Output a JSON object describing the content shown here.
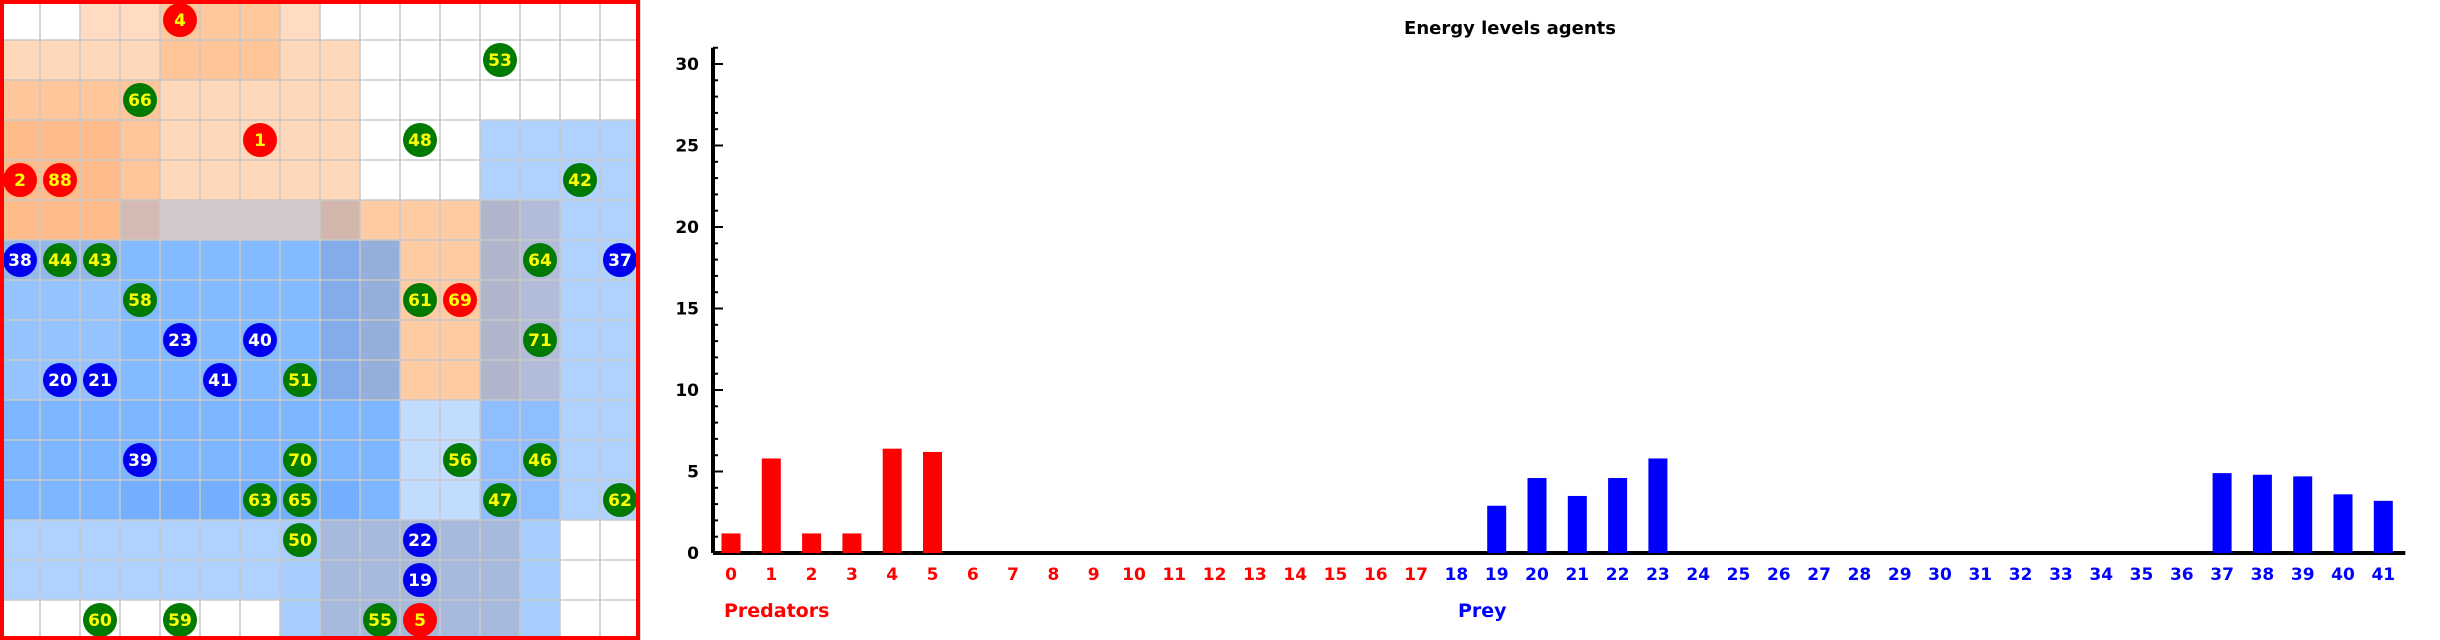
{
  "grid": {
    "rows": 16,
    "cols": 16,
    "cell_fill": "#ffffff",
    "line_color": "#c8c8c8",
    "border_color": "#ff0000",
    "zone_colors": {
      "predator": "#ffa763",
      "prey": "#4f9bff"
    },
    "zones": [
      {
        "kind": "predator",
        "c0": 2,
        "r0": 0,
        "c1": 7,
        "r1": 0,
        "opacity": 0.4
      },
      {
        "kind": "predator",
        "c0": 4,
        "r0": 0,
        "c1": 6,
        "r1": 1,
        "opacity": 0.4
      },
      {
        "kind": "predator",
        "c0": 0,
        "r0": 1,
        "c1": 8,
        "r1": 5,
        "opacity": 0.45
      },
      {
        "kind": "predator",
        "c0": 0,
        "r0": 2,
        "c1": 3,
        "r1": 5,
        "opacity": 0.35
      },
      {
        "kind": "predator",
        "c0": 0,
        "r0": 3,
        "c1": 2,
        "r1": 6,
        "opacity": 0.3
      },
      {
        "kind": "predator",
        "c0": 8,
        "r0": 5,
        "c1": 13,
        "r1": 9,
        "opacity": 0.45
      },
      {
        "kind": "predator",
        "c0": 9,
        "r0": 5,
        "c1": 12,
        "r1": 9,
        "opacity": 0.25
      },
      {
        "kind": "predator",
        "c0": 8,
        "r0": 13,
        "c1": 12,
        "r1": 15,
        "opacity": 0.45
      },
      {
        "kind": "prey",
        "c0": 12,
        "r0": 3,
        "c1": 15,
        "r1": 12,
        "opacity": 0.45
      },
      {
        "kind": "prey",
        "c0": 0,
        "r0": 6,
        "c1": 9,
        "r1": 12,
        "opacity": 0.6
      },
      {
        "kind": "prey",
        "c0": 3,
        "r0": 5,
        "c1": 8,
        "r1": 9,
        "opacity": 0.25
      },
      {
        "kind": "prey",
        "c0": 0,
        "r0": 10,
        "c1": 13,
        "r1": 12,
        "opacity": 0.35
      },
      {
        "kind": "prey",
        "c0": 0,
        "r0": 13,
        "c1": 6,
        "r1": 14,
        "opacity": 0.45
      },
      {
        "kind": "prey",
        "c0": 7,
        "r0": 13,
        "c1": 13,
        "r1": 15,
        "opacity": 0.5
      },
      {
        "kind": "prey",
        "c0": 3,
        "r0": 12,
        "c1": 8,
        "r1": 12,
        "opacity": 0.2
      }
    ],
    "agent_colors": {
      "predator": "#ff0000",
      "prey": "#0000ee",
      "plant": "#007a00",
      "predator_text": "#ffff00",
      "prey_text": "#ffffff",
      "plant_text": "#ffff00"
    },
    "agents": [
      {
        "label": "4",
        "kind": "predator",
        "row": 0,
        "col": 4
      },
      {
        "label": "53",
        "kind": "plant",
        "row": 1,
        "col": 12
      },
      {
        "label": "66",
        "kind": "plant",
        "row": 2,
        "col": 3
      },
      {
        "label": "1",
        "kind": "predator",
        "row": 3,
        "col": 6
      },
      {
        "label": "48",
        "kind": "plant",
        "row": 3,
        "col": 10
      },
      {
        "label": "2",
        "kind": "predator",
        "row": 4,
        "col": 0
      },
      {
        "label": "88",
        "kind": "predator",
        "row": 4,
        "col": 1
      },
      {
        "label": "42",
        "kind": "plant",
        "row": 4,
        "col": 14
      },
      {
        "label": "38",
        "kind": "prey",
        "row": 6,
        "col": 0
      },
      {
        "label": "44",
        "kind": "plant",
        "row": 6,
        "col": 1
      },
      {
        "label": "43",
        "kind": "plant",
        "row": 6,
        "col": 2
      },
      {
        "label": "64",
        "kind": "plant",
        "row": 6,
        "col": 13
      },
      {
        "label": "37",
        "kind": "prey",
        "row": 6,
        "col": 15
      },
      {
        "label": "58",
        "kind": "plant",
        "row": 7,
        "col": 3
      },
      {
        "label": "61",
        "kind": "plant",
        "row": 7,
        "col": 10
      },
      {
        "label": "69",
        "kind": "predator",
        "row": 7,
        "col": 11
      },
      {
        "label": "23",
        "kind": "prey",
        "row": 8,
        "col": 4
      },
      {
        "label": "40",
        "kind": "prey",
        "row": 8,
        "col": 6
      },
      {
        "label": "71",
        "kind": "plant",
        "row": 8,
        "col": 13
      },
      {
        "label": "20",
        "kind": "prey",
        "row": 9,
        "col": 1
      },
      {
        "label": "21",
        "kind": "prey",
        "row": 9,
        "col": 2
      },
      {
        "label": "41",
        "kind": "prey",
        "row": 9,
        "col": 5
      },
      {
        "label": "51",
        "kind": "plant",
        "row": 9,
        "col": 7
      },
      {
        "label": "39",
        "kind": "prey",
        "row": 11,
        "col": 3
      },
      {
        "label": "70",
        "kind": "plant",
        "row": 11,
        "col": 7
      },
      {
        "label": "56",
        "kind": "plant",
        "row": 11,
        "col": 11
      },
      {
        "label": "46",
        "kind": "plant",
        "row": 11,
        "col": 13
      },
      {
        "label": "63",
        "kind": "plant",
        "row": 12,
        "col": 6
      },
      {
        "label": "65",
        "kind": "plant",
        "row": 12,
        "col": 7
      },
      {
        "label": "47",
        "kind": "plant",
        "row": 12,
        "col": 12
      },
      {
        "label": "62",
        "kind": "plant",
        "row": 12,
        "col": 15
      },
      {
        "label": "50",
        "kind": "plant",
        "row": 13,
        "col": 7
      },
      {
        "label": "22",
        "kind": "prey",
        "row": 13,
        "col": 10
      },
      {
        "label": "19",
        "kind": "prey",
        "row": 14,
        "col": 10
      },
      {
        "label": "60",
        "kind": "plant",
        "row": 15,
        "col": 2
      },
      {
        "label": "59",
        "kind": "plant",
        "row": 15,
        "col": 4
      },
      {
        "label": "55",
        "kind": "plant",
        "row": 15,
        "col": 9
      },
      {
        "label": "5",
        "kind": "predator",
        "row": 15,
        "col": 10
      }
    ]
  },
  "chart_data": {
    "type": "bar",
    "title": "Energy levels agents",
    "xlabel": "",
    "ylabel": "",
    "ylim": [
      0,
      31
    ],
    "yticks": [
      0,
      5,
      10,
      15,
      20,
      25,
      30
    ],
    "grid": false,
    "categories": [
      "0",
      "1",
      "2",
      "3",
      "4",
      "5",
      "6",
      "7",
      "8",
      "9",
      "10",
      "11",
      "12",
      "13",
      "14",
      "15",
      "16",
      "17",
      "18",
      "19",
      "20",
      "21",
      "22",
      "23",
      "24",
      "25",
      "26",
      "27",
      "28",
      "29",
      "30",
      "31",
      "32",
      "33",
      "34",
      "35",
      "36",
      "37",
      "38",
      "39",
      "40",
      "41"
    ],
    "series": [
      {
        "name": "Predators",
        "color": "#ff0000",
        "values": [
          1.2,
          5.8,
          1.2,
          1.2,
          6.4,
          6.2,
          0,
          0,
          0,
          0,
          0,
          0,
          0,
          0,
          0,
          0,
          0,
          0,
          null,
          null,
          null,
          null,
          null,
          null,
          null,
          null,
          null,
          null,
          null,
          null,
          null,
          null,
          null,
          null,
          null,
          null,
          null,
          null,
          null,
          null,
          null,
          null
        ]
      },
      {
        "name": "Prey",
        "color": "#0000ff",
        "values": [
          null,
          null,
          null,
          null,
          null,
          null,
          null,
          null,
          null,
          null,
          null,
          null,
          null,
          null,
          null,
          null,
          null,
          null,
          0,
          2.9,
          4.6,
          3.5,
          4.6,
          5.8,
          0,
          0,
          0,
          0,
          0,
          0,
          0,
          0,
          0,
          0,
          0,
          0,
          0,
          4.9,
          4.8,
          4.7,
          3.6,
          3.2
        ]
      }
    ]
  }
}
